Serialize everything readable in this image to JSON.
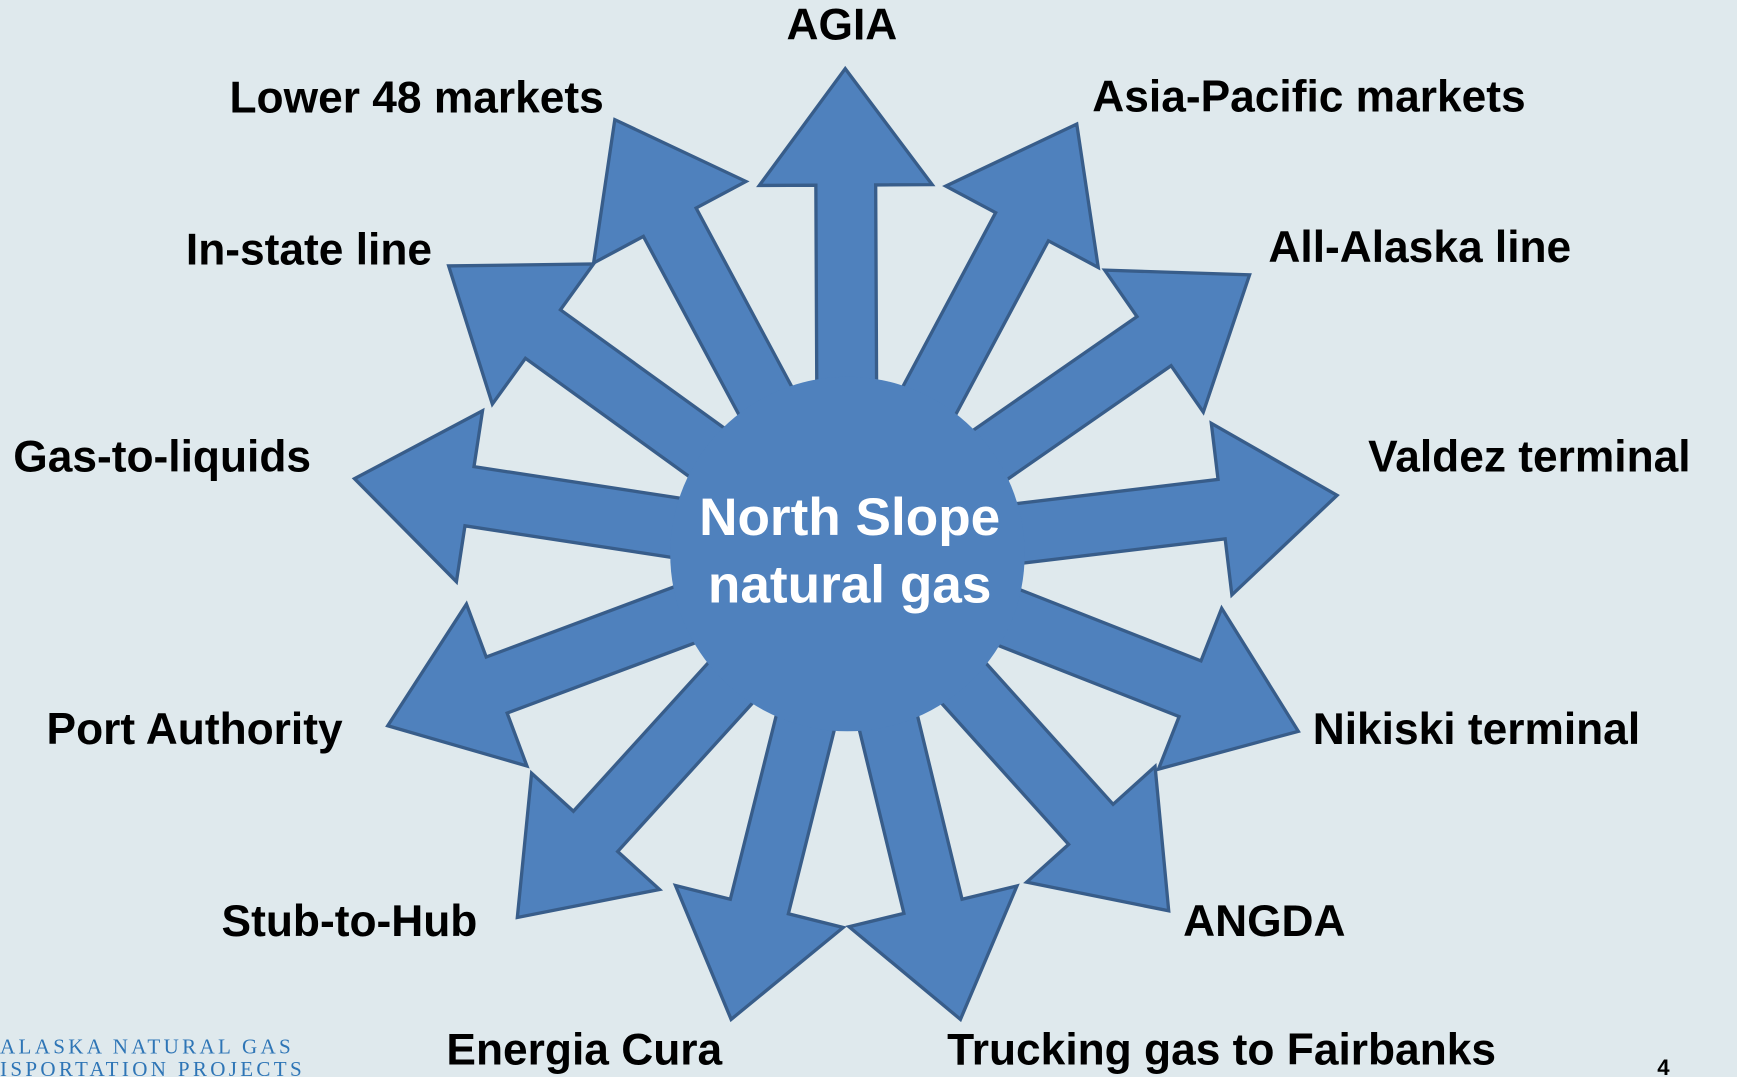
{
  "center": {
    "lines": [
      "North Slope",
      "natural gas"
    ]
  },
  "nodes": [
    {
      "label": "AGIA"
    },
    {
      "label": "Lower 48 markets"
    },
    {
      "label": "Asia-Pacific markets"
    },
    {
      "label": "In-state line"
    },
    {
      "label": "All-Alaska line"
    },
    {
      "label": "Gas-to-liquids"
    },
    {
      "label": "Valdez terminal"
    },
    {
      "label": "Port Authority"
    },
    {
      "label": "Nikiski terminal"
    },
    {
      "label": "Stub-to-Hub"
    },
    {
      "label": "ANGDA"
    },
    {
      "label": "Energia Cura"
    },
    {
      "label": "Trucking gas to Fairbanks"
    }
  ],
  "footer": {
    "logo": [
      "ALASKA NATURAL GAS",
      "ISPORTATION PROJECTS"
    ],
    "page": "4"
  }
}
